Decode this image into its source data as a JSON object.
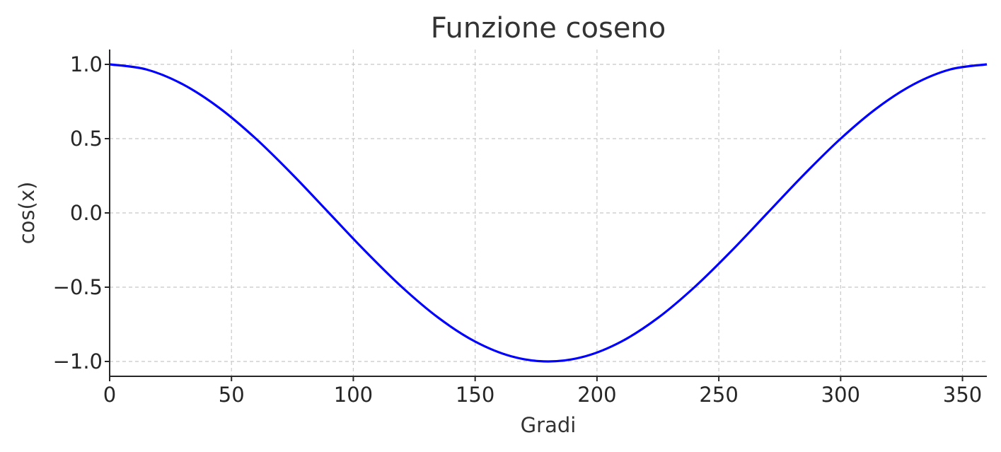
{
  "chart_data": {
    "type": "line",
    "title": "Funzione coseno",
    "xlabel": "Gradi",
    "ylabel": "cos(x)",
    "xlim": [
      0,
      360
    ],
    "ylim": [
      -1.1,
      1.1
    ],
    "xticks": [
      0,
      50,
      100,
      150,
      200,
      250,
      300,
      350
    ],
    "xtick_labels": [
      "0",
      "50",
      "100",
      "150",
      "200",
      "250",
      "300",
      "350"
    ],
    "yticks": [
      1.0,
      0.5,
      0.0,
      -0.5,
      -1.0
    ],
    "ytick_labels": [
      "1.0",
      "0.5",
      "0.0",
      "−0.5",
      "−1.0"
    ],
    "grid": true,
    "grid_style": "dashed",
    "series": [
      {
        "color": "#0000ff",
        "x": [
          0,
          15,
          30,
          45,
          60,
          75,
          90,
          105,
          120,
          135,
          150,
          165,
          180,
          195,
          210,
          225,
          240,
          255,
          270,
          285,
          300,
          315,
          330,
          345,
          360
        ],
        "y": [
          1.0,
          0.966,
          0.866,
          0.707,
          0.5,
          0.259,
          0.0,
          -0.259,
          -0.5,
          -0.707,
          -0.866,
          -0.966,
          -1.0,
          -0.966,
          -0.866,
          -0.707,
          -0.5,
          -0.259,
          0.0,
          0.259,
          0.5,
          0.707,
          0.866,
          0.966,
          1.0
        ]
      }
    ]
  }
}
